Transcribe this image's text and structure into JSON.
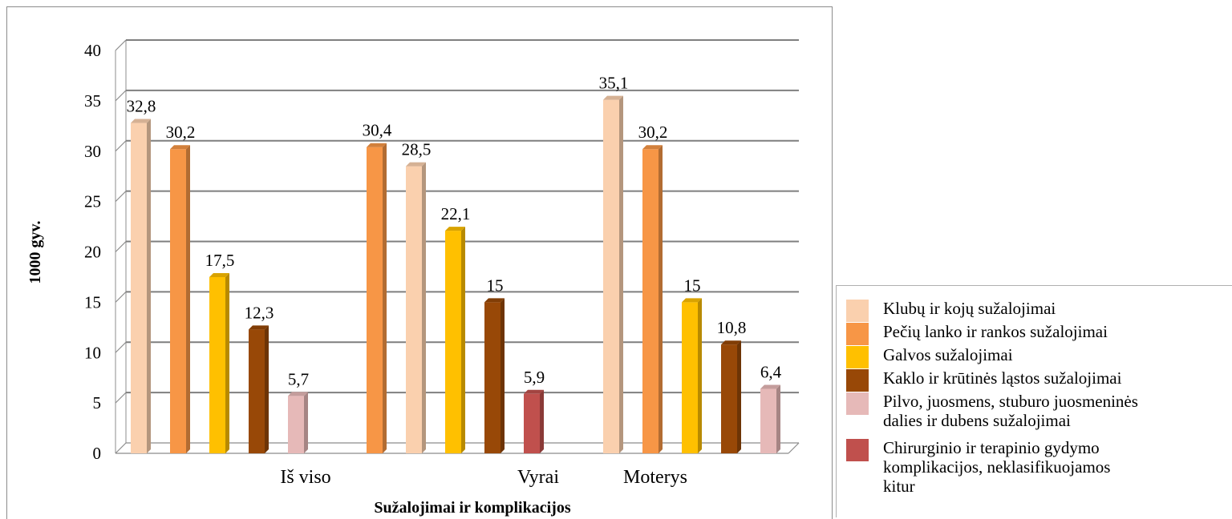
{
  "chart_data": {
    "type": "bar",
    "categories": [
      "Iš viso",
      "Vyrai",
      "Moterys"
    ],
    "xlabel": "Sužalojimai ir komplikacijos",
    "ylabel": "1000 gyv.",
    "ylim": [
      0,
      40
    ],
    "yticks": [
      0,
      5,
      10,
      15,
      20,
      25,
      30,
      35,
      40
    ],
    "grid": true,
    "legend_position": "right",
    "series": [
      {
        "name": "Klubų ir kojų sužalojimai",
        "color": "#FAD0AE"
      },
      {
        "name": "Pečių lanko ir rankos sužalojimai",
        "color": "#F79646"
      },
      {
        "name": "Galvos sužalojimai",
        "color": "#FFC000"
      },
      {
        "name": "Kaklo ir krūtinės ląstos sužalojimai",
        "color": "#984807"
      },
      {
        "name": "Pilvo, juosmens, stuburo juosmeninės dalies  ir dubens sužalojimai",
        "color": "#E6B9B8"
      },
      {
        "name": "Chirurginio ir terapinio gydymo komplikacijos, neklasifikuojamos kitur",
        "color": "#C0504D"
      }
    ],
    "groups": [
      {
        "category": "Iš viso",
        "bars": [
          {
            "series": 0,
            "value": 32.8,
            "label": "32,8"
          },
          {
            "series": 1,
            "value": 30.2,
            "label": "30,2"
          },
          {
            "series": 2,
            "value": 17.5,
            "label": "17,5"
          },
          {
            "series": 3,
            "value": 12.3,
            "label": "12,3"
          },
          {
            "series": 4,
            "value": 5.7,
            "label": "5,7"
          }
        ]
      },
      {
        "category": "Vyrai",
        "bars": [
          {
            "series": 1,
            "value": 30.4,
            "label": "30,4"
          },
          {
            "series": 0,
            "value": 28.5,
            "label": "28,5"
          },
          {
            "series": 2,
            "value": 22.1,
            "label": "22,1"
          },
          {
            "series": 3,
            "value": 15,
            "label": "15"
          },
          {
            "series": 5,
            "value": 5.9,
            "label": "5,9"
          }
        ]
      },
      {
        "category": "Moterys",
        "bars": [
          {
            "series": 0,
            "value": 35.1,
            "label": "35,1"
          },
          {
            "series": 1,
            "value": 30.2,
            "label": "30,2"
          },
          {
            "series": 2,
            "value": 15,
            "label": "15"
          },
          {
            "series": 3,
            "value": 10.8,
            "label": "10,8"
          },
          {
            "series": 4,
            "value": 6.4,
            "label": "6,4"
          }
        ]
      }
    ]
  },
  "legend": {
    "items": [
      {
        "label": "Klubų ir kojų sužalojimai",
        "color": "#FAD0AE"
      },
      {
        "label": "Pečių lanko ir rankos sužalojimai",
        "color": "#F79646"
      },
      {
        "label": "Galvos sužalojimai",
        "color": "#FFC000"
      },
      {
        "label": "Kaklo ir krūtinės ląstos sužalojimai",
        "color": "#984807"
      },
      {
        "label": "Pilvo, juosmens, stuburo juosmeninės dalies  ir dubens sužalojimai",
        "color": "#E6B9B8"
      },
      {
        "label": "Chirurginio ir terapinio gydymo komplikacijos, neklasifikuojamos kitur",
        "color": "#C0504D"
      }
    ]
  }
}
